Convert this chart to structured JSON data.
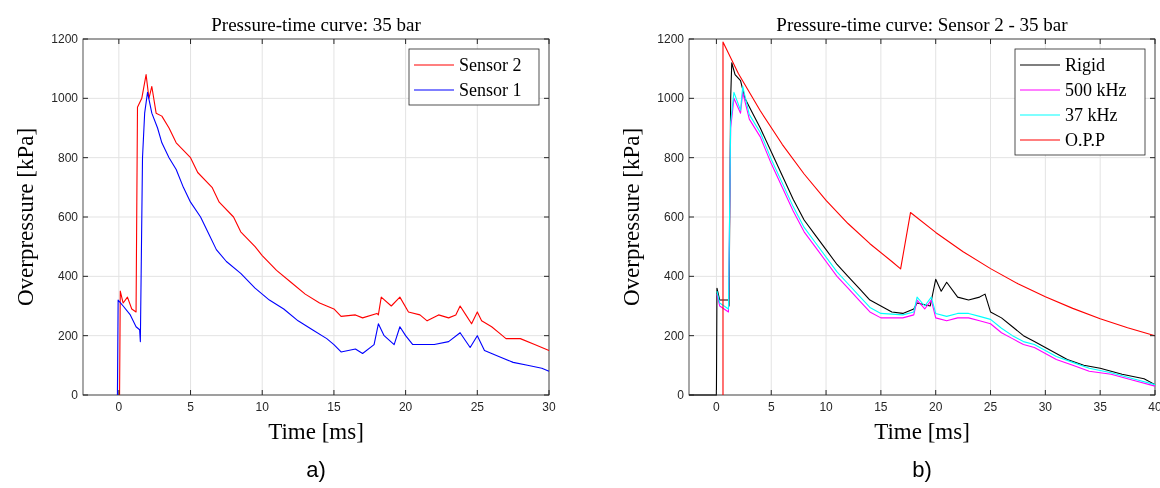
{
  "chart_data": [
    {
      "type": "line",
      "title": "Pressure-time curve: 35 bar",
      "xlabel": "Time [ms]",
      "ylabel": "Overpressure [kPa]",
      "xlim": [
        -2.5,
        30
      ],
      "xticks": [
        0,
        5,
        10,
        15,
        20,
        25,
        30
      ],
      "ylim": [
        0,
        1200
      ],
      "yticks": [
        0,
        200,
        400,
        600,
        800,
        1000,
        1200
      ],
      "grid": true,
      "legend": "top right",
      "annotations": [
        "a)"
      ],
      "series": [
        {
          "name": "Sensor 2",
          "color": "#ff0000",
          "x": [
            0.05,
            0.1,
            0.3,
            0.6,
            0.9,
            1.2,
            1.3,
            1.6,
            1.9,
            2.1,
            2.3,
            2.6,
            3,
            3.5,
            4,
            5,
            5.5,
            6.5,
            7,
            8,
            8.5,
            9.5,
            10,
            11,
            12,
            13,
            14,
            15,
            15.5,
            16.5,
            17,
            18,
            18.1,
            18.3,
            19,
            19.6,
            20.2,
            21,
            21.5,
            22.3,
            23,
            23.5,
            23.8,
            24.2,
            24.6,
            25,
            25.3,
            26,
            26.5,
            27,
            28,
            29,
            30
          ],
          "values": [
            0,
            350,
            310,
            330,
            290,
            280,
            970,
            1000,
            1080,
            1000,
            1040,
            950,
            940,
            900,
            850,
            800,
            750,
            700,
            650,
            600,
            550,
            500,
            470,
            420,
            380,
            340,
            310,
            290,
            265,
            270,
            260,
            275,
            270,
            330,
            300,
            330,
            280,
            270,
            250,
            270,
            260,
            270,
            300,
            270,
            240,
            280,
            250,
            230,
            210,
            190,
            190,
            170,
            150
          ]
        },
        {
          "name": "Sensor 1",
          "color": "#0000ff",
          "x": [
            -0.1,
            -0.05,
            0.3,
            0.8,
            1.2,
            1.45,
            1.5,
            1.65,
            1.8,
            2,
            2.3,
            2.7,
            3,
            3.5,
            4,
            4.5,
            5,
            5.7,
            6.3,
            6.8,
            7.5,
            8.5,
            9.5,
            10.5,
            11.5,
            12.5,
            13.5,
            14.5,
            15,
            15.5,
            16.5,
            17,
            17.8,
            18.1,
            18.5,
            19.2,
            19.6,
            20,
            20.5,
            22,
            23,
            23.8,
            24.5,
            25,
            25.5,
            26.5,
            27.5,
            28.5,
            29.5,
            30
          ],
          "values": [
            0,
            320,
            300,
            270,
            230,
            220,
            180,
            800,
            950,
            1020,
            950,
            900,
            850,
            800,
            760,
            700,
            650,
            600,
            540,
            490,
            450,
            410,
            360,
            320,
            290,
            250,
            220,
            190,
            170,
            145,
            155,
            140,
            170,
            240,
            200,
            170,
            230,
            200,
            170,
            170,
            180,
            210,
            160,
            200,
            150,
            130,
            110,
            100,
            90,
            80
          ]
        }
      ]
    },
    {
      "type": "line",
      "title": "Pressure-time curve: Sensor 2 - 35 bar",
      "xlabel": "Time [ms]",
      "ylabel": "Overpressure [kPa]",
      "xlim": [
        -2.5,
        40
      ],
      "xticks": [
        0,
        5,
        10,
        15,
        20,
        25,
        30,
        35,
        40
      ],
      "ylim": [
        0,
        1200
      ],
      "yticks": [
        0,
        200,
        400,
        600,
        800,
        1000,
        1200
      ],
      "grid": true,
      "legend": "top right",
      "annotations": [
        "b)"
      ],
      "series": [
        {
          "name": "Rigid",
          "color": "#000000",
          "x": [
            -2.5,
            0,
            0.05,
            0.3,
            1.1,
            1.15,
            1.3,
            1.4,
            1.7,
            2.2,
            2.6,
            3.3,
            4,
            5,
            6,
            7,
            8,
            9,
            10,
            11,
            12,
            13,
            14,
            15,
            16,
            17,
            18,
            18.3,
            19.5,
            20,
            20.5,
            21,
            22,
            23,
            24,
            24.5,
            25,
            26,
            27,
            28,
            29,
            30,
            31,
            32,
            33.5,
            35,
            37,
            39,
            40
          ],
          "values": [
            0,
            0,
            360,
            320,
            320,
            300,
            1000,
            1120,
            1080,
            1060,
            1000,
            950,
            900,
            820,
            740,
            660,
            590,
            540,
            490,
            440,
            400,
            360,
            320,
            300,
            280,
            275,
            290,
            310,
            300,
            390,
            350,
            380,
            330,
            320,
            330,
            340,
            280,
            260,
            230,
            200,
            180,
            160,
            140,
            120,
            100,
            90,
            70,
            55,
            35
          ]
        },
        {
          "name": "500 kHz",
          "color": "#ff00ff",
          "x": [
            0.05,
            0.3,
            1.1,
            1.3,
            1.6,
            2.2,
            2.4,
            3,
            4,
            5,
            6,
            7,
            8,
            9,
            10,
            11,
            12,
            13,
            14,
            15,
            17,
            18,
            18.3,
            19,
            19.6,
            20,
            21,
            22,
            23,
            24,
            25,
            26,
            27,
            28,
            29,
            30,
            31,
            32.5,
            34,
            36,
            38,
            40
          ],
          "values": [
            340,
            300,
            280,
            900,
            1000,
            950,
            1020,
            930,
            870,
            780,
            700,
            620,
            550,
            500,
            450,
            400,
            360,
            320,
            280,
            260,
            260,
            270,
            320,
            290,
            320,
            260,
            250,
            260,
            260,
            250,
            240,
            210,
            190,
            170,
            160,
            140,
            120,
            100,
            80,
            70,
            50,
            30
          ]
        },
        {
          "name": "37 kHz",
          "color": "#00ffff",
          "x": [
            0.05,
            0.3,
            1.1,
            1.3,
            1.6,
            2.2,
            2.4,
            3,
            4,
            5,
            6,
            7,
            8,
            9,
            10,
            11,
            12,
            13,
            14,
            15,
            17,
            18,
            18.3,
            19,
            19.6,
            20,
            21,
            22,
            23,
            24,
            25,
            26,
            27,
            28,
            29,
            30,
            31,
            32.5,
            34,
            36,
            38,
            40
          ],
          "values": [
            350,
            310,
            290,
            920,
            1020,
            960,
            1040,
            945,
            885,
            795,
            715,
            635,
            565,
            515,
            465,
            415,
            375,
            335,
            295,
            275,
            270,
            280,
            330,
            300,
            330,
            275,
            265,
            275,
            275,
            265,
            255,
            225,
            200,
            180,
            170,
            150,
            130,
            110,
            90,
            75,
            55,
            35
          ]
        },
        {
          "name": "O.P.P",
          "color": "#ff0000",
          "x": [
            0.6,
            0.6,
            2,
            4,
            6,
            8,
            10,
            12,
            14,
            16,
            16.8,
            17.7,
            20,
            22.5,
            25,
            27.5,
            30,
            32.5,
            35,
            37.5,
            40
          ],
          "values": [
            0,
            1190,
            1084,
            958,
            845,
            745,
            656,
            578,
            510,
            450,
            425,
            615,
            548,
            483,
            426,
            375,
            331,
            292,
            257,
            227,
            200
          ]
        }
      ]
    }
  ]
}
